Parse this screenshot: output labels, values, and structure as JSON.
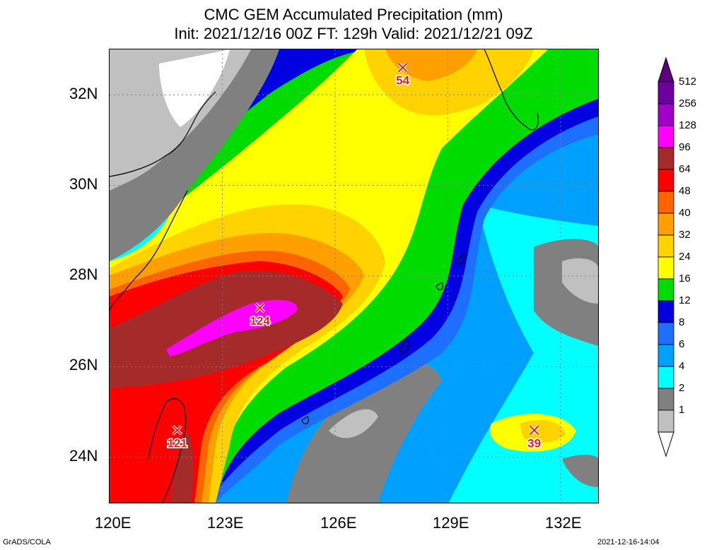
{
  "header": {
    "title_line1": "CMC GEM Accumulated Precipitation (mm)",
    "title_line2": "Init: 2021/12/16 00Z  FT: 129h  Valid: 2021/12/21 09Z"
  },
  "axes": {
    "x_ticks": [
      "120E",
      "123E",
      "126E",
      "129E",
      "132E"
    ],
    "y_ticks": [
      "32N",
      "30N",
      "28N",
      "26N",
      "24N"
    ],
    "lon_range": [
      120,
      133
    ],
    "lat_range": [
      23,
      33
    ]
  },
  "maxima": [
    {
      "label": "54",
      "lon": 127.8,
      "lat": 32.6
    },
    {
      "label": "124",
      "lon": 124.0,
      "lat": 27.3
    },
    {
      "label": "121",
      "lon": 121.8,
      "lat": 24.6
    },
    {
      "label": "39",
      "lon": 131.3,
      "lat": 24.6
    }
  ],
  "colorbar": {
    "levels": [
      "512",
      "256",
      "128",
      "96",
      "64",
      "48",
      "40",
      "32",
      "24",
      "16",
      "12",
      "8",
      "6",
      "4",
      "2",
      "1"
    ],
    "colors": [
      "#6e00a0",
      "#a000c8",
      "#ff00ff",
      "#a52a2a",
      "#ff0000",
      "#ff6400",
      "#ffa000",
      "#ffd200",
      "#ffff00",
      "#00dc00",
      "#0000e0",
      "#1e6eff",
      "#00a0ff",
      "#00ffff",
      "#808080",
      "#c0c0c0"
    ]
  },
  "palette": {
    "white": "#ffffff",
    "light_gray": "#c0c0c0",
    "gray": "#808080",
    "cyan": "#00ffff",
    "sky": "#00a0ff",
    "blue": "#1e6eff",
    "dark_blue": "#0000e0",
    "green": "#00dc00",
    "yellow": "#ffff00",
    "gold": "#ffd200",
    "orange": "#ffa000",
    "dark_orange": "#ff6400",
    "red": "#ff0000",
    "brown": "#a52a2a",
    "magenta": "#ff00ff"
  },
  "footer": {
    "left": "GrADS/COLA",
    "right": "2021-12-16-14:04"
  }
}
